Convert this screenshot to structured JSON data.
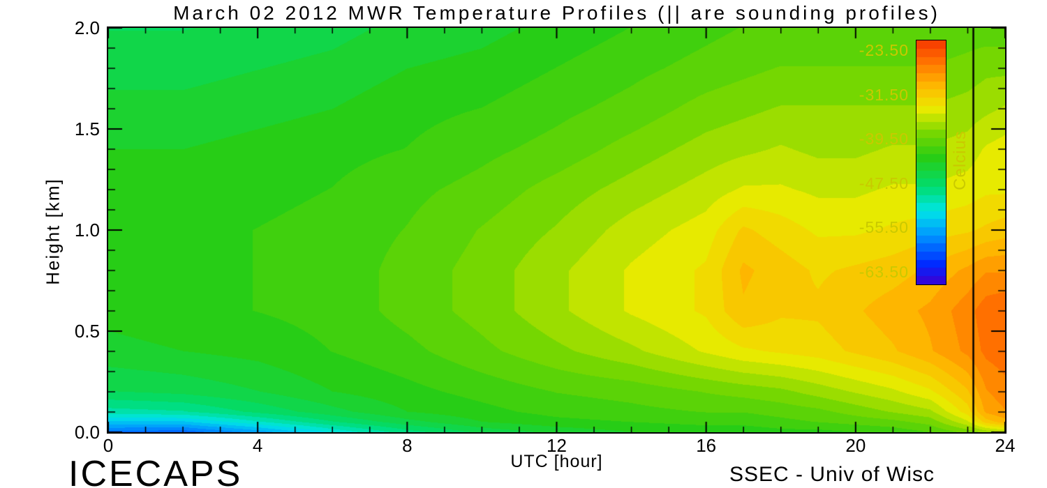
{
  "footer": {
    "left": "ICECAPS",
    "right": "SSEC - Univ of Wisc"
  },
  "chart_data": {
    "type": "heatmap",
    "title": "March 02 2012 MWR Temperature Profiles (|| are sounding profiles)",
    "xlabel": "UTC [hour]",
    "ylabel": "Height [km]",
    "xlim": [
      0,
      24
    ],
    "ylim": [
      0,
      2
    ],
    "x_ticks": [
      0,
      4,
      8,
      12,
      16,
      20,
      24
    ],
    "x_tick_labels": [
      "0",
      "4",
      "8",
      "12",
      "16",
      "20",
      "24"
    ],
    "x_minor_step": 1,
    "y_ticks": [
      0,
      0.5,
      1,
      1.5,
      2
    ],
    "y_tick_labels": [
      "0.0",
      "0.5",
      "1.0",
      "1.5",
      "2.0"
    ],
    "y_minor_step": 0.1,
    "contour_levels": 30,
    "axis_color": "#000000",
    "colorbar": {
      "label": "Celcius",
      "range": [
        -65.5,
        -21.5
      ],
      "tick_values": [
        -23.5,
        -31.5,
        -39.5,
        -47.5,
        -55.5,
        -63.5
      ],
      "tick_labels": [
        "-23.50",
        "-31.50",
        "-39.50",
        "-47.50",
        "-55.50",
        "-63.50"
      ],
      "text_color": "#c9c900"
    },
    "sounding_profile_hours": [
      23.15
    ],
    "colormap": [
      [
        0.0,
        [
          60,
          0,
          210
        ]
      ],
      [
        0.08,
        [
          0,
          40,
          255
        ]
      ],
      [
        0.2,
        [
          0,
          150,
          255
        ]
      ],
      [
        0.3,
        [
          0,
          230,
          230
        ]
      ],
      [
        0.4,
        [
          0,
          220,
          110
        ]
      ],
      [
        0.52,
        [
          40,
          205,
          20
        ]
      ],
      [
        0.62,
        [
          120,
          215,
          0
        ]
      ],
      [
        0.72,
        [
          235,
          235,
          0
        ]
      ],
      [
        0.82,
        [
          255,
          180,
          0
        ]
      ],
      [
        0.92,
        [
          255,
          110,
          0
        ]
      ],
      [
        1.0,
        [
          245,
          55,
          0
        ]
      ]
    ],
    "hours": [
      0,
      2,
      4,
      6,
      8,
      10,
      12,
      14,
      16,
      17,
      18,
      19,
      20,
      21,
      22,
      23,
      23.5,
      24
    ],
    "heights_km": [
      0,
      0.05,
      0.1,
      0.2,
      0.4,
      0.6,
      0.8,
      1.0,
      1.2,
      1.4,
      1.6,
      1.8,
      2.0
    ],
    "temperature_c": [
      [
        -58.5,
        -59.0,
        -56.0,
        -52.0,
        -48.5,
        -46.0,
        -44.5,
        -43.5,
        -43.0,
        -43.0,
        -42.5,
        -42.5,
        -42.0,
        -41.5,
        -40.5,
        -38.5,
        -37.0,
        -36.0
      ],
      [
        -54.0,
        -54.0,
        -51.0,
        -48.0,
        -45.5,
        -43.5,
        -42.5,
        -42.0,
        -41.5,
        -41.5,
        -41.0,
        -40.5,
        -40.0,
        -39.5,
        -38.5,
        -35.0,
        -31.0,
        -29.5
      ],
      [
        -50.0,
        -49.5,
        -47.5,
        -45.5,
        -43.5,
        -42.5,
        -41.5,
        -41.0,
        -40.5,
        -40.5,
        -40.0,
        -39.5,
        -38.5,
        -37.5,
        -36.5,
        -32.5,
        -28.5,
        -27.5
      ],
      [
        -46.5,
        -46.0,
        -45.0,
        -43.5,
        -42.5,
        -41.5,
        -40.5,
        -40.0,
        -39.0,
        -38.5,
        -38.0,
        -37.0,
        -36.0,
        -35.0,
        -33.5,
        -30.5,
        -27.5,
        -26.5
      ],
      [
        -44.0,
        -43.5,
        -43.0,
        -42.0,
        -41.0,
        -39.5,
        -38.0,
        -36.5,
        -34.5,
        -33.5,
        -33.0,
        -32.5,
        -31.5,
        -30.5,
        -29.0,
        -27.0,
        -25.5,
        -25.0
      ],
      [
        -43.0,
        -42.5,
        -42.0,
        -41.5,
        -40.0,
        -38.5,
        -36.5,
        -34.5,
        -33.0,
        -30.5,
        -31.5,
        -31.5,
        -30.5,
        -29.5,
        -28.5,
        -26.5,
        -25.0,
        -24.5
      ],
      [
        -42.5,
        -42.5,
        -42.0,
        -41.5,
        -40.0,
        -38.5,
        -36.5,
        -34.5,
        -33.0,
        -30.0,
        -31.0,
        -32.0,
        -31.5,
        -31.0,
        -30.0,
        -28.5,
        -27.5,
        -27.5
      ],
      [
        -42.5,
        -42.5,
        -42.0,
        -41.5,
        -40.5,
        -39.0,
        -37.5,
        -35.5,
        -34.0,
        -31.5,
        -32.5,
        -33.5,
        -33.5,
        -33.0,
        -32.5,
        -32.0,
        -31.5,
        -31.0
      ],
      [
        -43.0,
        -43.0,
        -42.5,
        -42.0,
        -41.0,
        -40.0,
        -38.5,
        -37.0,
        -35.5,
        -34.5,
        -34.5,
        -35.0,
        -35.0,
        -34.5,
        -34.5,
        -34.0,
        -33.5,
        -33.5
      ],
      [
        -43.5,
        -43.5,
        -43.0,
        -42.5,
        -42.0,
        -41.0,
        -40.0,
        -38.5,
        -37.0,
        -36.5,
        -36.0,
        -36.5,
        -36.5,
        -36.0,
        -36.0,
        -35.5,
        -34.5,
        -34.0
      ],
      [
        -44.5,
        -44.5,
        -44.0,
        -43.5,
        -42.5,
        -42.0,
        -41.0,
        -40.0,
        -38.5,
        -38.0,
        -37.5,
        -37.5,
        -37.5,
        -37.5,
        -37.5,
        -37.0,
        -36.5,
        -36.0
      ],
      [
        -45.5,
        -45.5,
        -45.0,
        -44.5,
        -43.5,
        -43.0,
        -42.0,
        -41.0,
        -40.0,
        -39.5,
        -39.0,
        -39.0,
        -39.0,
        -39.0,
        -39.0,
        -38.5,
        -38.0,
        -38.0
      ],
      [
        -46.5,
        -46.5,
        -46.0,
        -45.5,
        -44.5,
        -44.0,
        -43.0,
        -42.0,
        -41.0,
        -40.5,
        -40.5,
        -40.5,
        -40.5,
        -40.5,
        -40.5,
        -40.0,
        -40.0,
        -40.0
      ]
    ]
  }
}
